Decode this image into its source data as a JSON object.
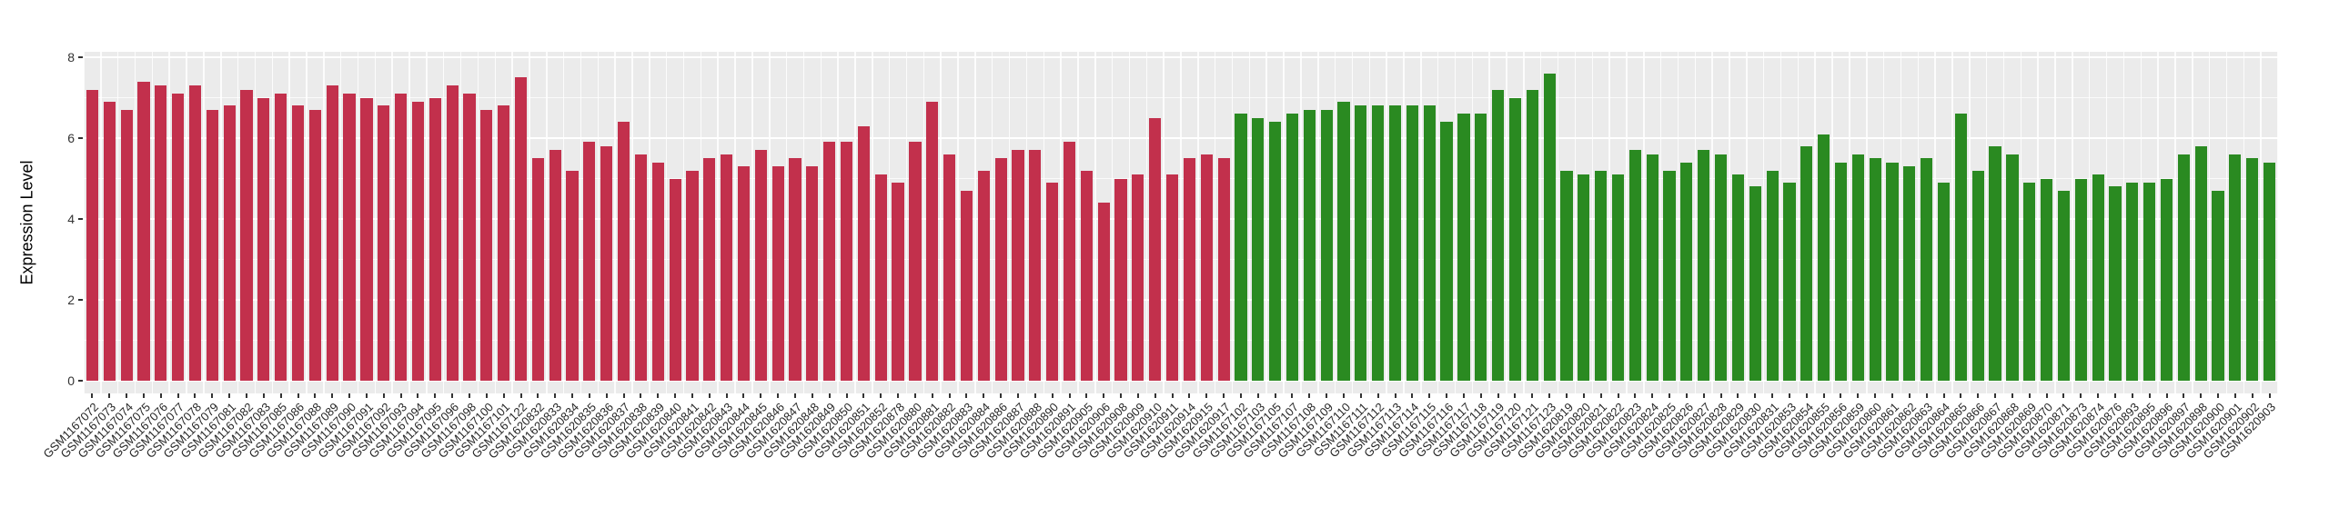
{
  "chart_data": {
    "type": "bar",
    "title": "",
    "xlabel": "",
    "ylabel": "Expression Level",
    "ylim": [
      0,
      8
    ],
    "yticks": [
      0,
      2,
      4,
      6,
      8
    ],
    "grid": "on",
    "legend": "none",
    "panel_background": "#EBEBEB",
    "gridline_color": "#FFFFFF",
    "tick_text_color": "#333333",
    "bar_groups": [
      {
        "name": "group-red",
        "color": "#C2304C",
        "samples": [
          "GSM1167072",
          "GSM1167073",
          "GSM1167074",
          "GSM1167075",
          "GSM1167076",
          "GSM1167077",
          "GSM1167078",
          "GSM1167079",
          "GSM1167081",
          "GSM1167082",
          "GSM1167083",
          "GSM1167085",
          "GSM1167086",
          "GSM1167088",
          "GSM1167089",
          "GSM1167090",
          "GSM1167091",
          "GSM1167092",
          "GSM1167093",
          "GSM1167094",
          "GSM1167095",
          "GSM1167096",
          "GSM1167098",
          "GSM1167100",
          "GSM1167101",
          "GSM1167122",
          "GSM1620832",
          "GSM1620833",
          "GSM1620834",
          "GSM1620835",
          "GSM1620836",
          "GSM1620837",
          "GSM1620838",
          "GSM1620839",
          "GSM1620840",
          "GSM1620841",
          "GSM1620842",
          "GSM1620843",
          "GSM1620844",
          "GSM1620845",
          "GSM1620846",
          "GSM1620847",
          "GSM1620848",
          "GSM1620849",
          "GSM1620850",
          "GSM1620851",
          "GSM1620852",
          "GSM1620878",
          "GSM1620880",
          "GSM1620881",
          "GSM1620882",
          "GSM1620883",
          "GSM1620884",
          "GSM1620886",
          "GSM1620887",
          "GSM1620888",
          "GSM1620890",
          "GSM1620891",
          "GSM1620905",
          "GSM1620906",
          "GSM1620908",
          "GSM1620909",
          "GSM1620910",
          "GSM1620911",
          "GSM1620914",
          "GSM1620915",
          "GSM1620917"
        ],
        "values": [
          7.2,
          6.9,
          6.7,
          7.4,
          7.3,
          7.1,
          7.3,
          6.7,
          6.8,
          7.2,
          7.0,
          7.1,
          6.8,
          6.7,
          7.3,
          7.1,
          7.0,
          6.8,
          7.1,
          6.9,
          7.0,
          7.3,
          7.1,
          6.7,
          6.8,
          7.5,
          5.5,
          5.7,
          5.2,
          5.9,
          5.8,
          6.4,
          5.6,
          5.4,
          5.0,
          5.2,
          5.5,
          5.6,
          5.3,
          5.7,
          5.3,
          5.5,
          5.3,
          5.9,
          5.9,
          6.3,
          5.1,
          4.9,
          5.9,
          6.9,
          5.6,
          4.7,
          5.2,
          5.5,
          5.7,
          5.7,
          4.9,
          5.9,
          5.2,
          4.4,
          5.0,
          5.1,
          6.5,
          5.1,
          5.5,
          5.6,
          5.5
        ]
      },
      {
        "name": "group-green",
        "color": "#2A8A21",
        "samples": [
          "GSM1167102",
          "GSM1167103",
          "GSM1167105",
          "GSM1167107",
          "GSM1167108",
          "GSM1167109",
          "GSM1167110",
          "GSM1167111",
          "GSM1167112",
          "GSM1167113",
          "GSM1167114",
          "GSM1167115",
          "GSM1167116",
          "GSM1167117",
          "GSM1167118",
          "GSM1167119",
          "GSM1167120",
          "GSM1167121",
          "GSM1167123",
          "GSM1620819",
          "GSM1620820",
          "GSM1620821",
          "GSM1620822",
          "GSM1620823",
          "GSM1620824",
          "GSM1620825",
          "GSM1620826",
          "GSM1620827",
          "GSM1620828",
          "GSM1620829",
          "GSM1620830",
          "GSM1620831",
          "GSM1620853",
          "GSM1620854",
          "GSM1620855",
          "GSM1620856",
          "GSM1620859",
          "GSM1620860",
          "GSM1620861",
          "GSM1620862",
          "GSM1620863",
          "GSM1620864",
          "GSM1620865",
          "GSM1620866",
          "GSM1620867",
          "GSM1620868",
          "GSM1620869",
          "GSM1620870",
          "GSM1620871",
          "GSM1620873",
          "GSM1620874",
          "GSM1620876",
          "GSM1620893",
          "GSM1620895",
          "GSM1620896",
          "GSM1620897",
          "GSM1620898",
          "GSM1620900",
          "GSM1620901",
          "GSM1620902",
          "GSM1620903"
        ],
        "values": [
          6.6,
          6.5,
          6.4,
          6.6,
          6.7,
          6.7,
          6.9,
          6.8,
          6.8,
          6.8,
          6.8,
          6.8,
          6.4,
          6.6,
          6.6,
          7.2,
          7.0,
          7.2,
          7.6,
          5.2,
          5.1,
          5.2,
          5.1,
          5.7,
          5.6,
          5.2,
          5.4,
          5.7,
          5.6,
          5.1,
          4.8,
          5.2,
          4.9,
          5.8,
          6.1,
          5.4,
          5.6,
          5.5,
          5.4,
          5.3,
          5.5,
          4.9,
          6.6,
          5.2,
          5.8,
          5.6,
          4.9,
          5.0,
          4.7,
          5.0,
          5.1,
          4.8,
          4.9,
          4.9,
          5.0,
          5.6,
          5.8,
          4.7,
          5.6,
          5.5,
          5.4
        ]
      }
    ]
  }
}
